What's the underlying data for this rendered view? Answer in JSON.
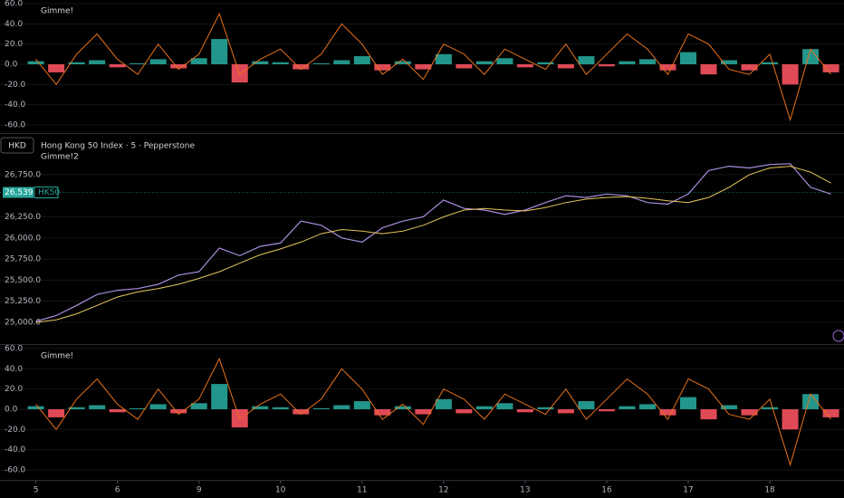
{
  "chart_data": [
    {
      "type": "bar",
      "title": "Gimme!",
      "x": [
        0,
        0.25,
        0.5,
        0.75,
        1,
        1.25,
        1.5,
        1.75,
        2,
        2.25,
        2.5,
        2.75,
        3,
        3.25,
        3.5,
        3.75,
        4,
        4.25,
        4.5,
        4.75,
        5,
        5.25,
        5.5,
        5.75,
        6,
        6.25,
        6.5,
        6.75,
        7,
        7.25,
        7.5,
        7.75,
        8,
        8.25,
        8.5,
        8.75,
        9,
        9.25,
        9.5,
        9.75
      ],
      "series": [
        {
          "style": "histogram",
          "positive_color": "#26a69a",
          "negative_color": "#f7525f",
          "values": [
            3,
            -8,
            2,
            4,
            -3,
            1,
            5,
            -4,
            6,
            25,
            -18,
            3,
            2,
            -5,
            1,
            4,
            8,
            -6,
            3,
            -5,
            10,
            -4,
            3,
            6,
            -3,
            2,
            -4,
            8,
            -2,
            3,
            5,
            -6,
            12,
            -10,
            4,
            -6,
            2,
            -20,
            15,
            -8
          ]
        },
        {
          "style": "line",
          "color": "#e8721c",
          "values": [
            5,
            -20,
            10,
            30,
            5,
            -10,
            20,
            -5,
            10,
            50,
            -10,
            5,
            15,
            -5,
            10,
            40,
            20,
            -10,
            5,
            -15,
            20,
            10,
            -10,
            15,
            5,
            -5,
            20,
            -10,
            10,
            30,
            15,
            -10,
            30,
            20,
            -5,
            -10,
            10,
            -55,
            15,
            -10
          ]
        }
      ],
      "xlim": [
        -0.44,
        9.91
      ],
      "ylim": [
        -68.1,
        63.6
      ],
      "yticks": [
        {
          "value": 60,
          "label": "60.0"
        },
        {
          "value": 40,
          "label": "40.0"
        },
        {
          "value": 20,
          "label": "20.0"
        },
        {
          "value": 0,
          "label": "0.0"
        },
        {
          "value": -20,
          "label": "-20.0"
        },
        {
          "value": -40,
          "label": "-40.0"
        },
        {
          "value": -60,
          "label": "-60.0"
        }
      ]
    },
    {
      "type": "line",
      "title": "Hong Kong 50 Index · 5 · Pepperstone",
      "subtitle": "Gimme!2",
      "currency": "HKD",
      "symbol": "HK50",
      "last_price": {
        "value": 26539.4,
        "label": "26,539.4"
      },
      "x": [
        0,
        0.25,
        0.5,
        0.75,
        1,
        1.25,
        1.5,
        1.75,
        2,
        2.25,
        2.5,
        2.75,
        3,
        3.25,
        3.5,
        3.75,
        4,
        4.25,
        4.5,
        4.75,
        5,
        5.25,
        5.5,
        5.75,
        6,
        6.25,
        6.5,
        6.75,
        7,
        7.25,
        7.5,
        7.75,
        8,
        8.25,
        8.5,
        8.75,
        9,
        9.25,
        9.5,
        9.75
      ],
      "series": [
        {
          "color": "#a98ee0",
          "values": [
            25010,
            25080,
            25200,
            25330,
            25380,
            25400,
            25450,
            25560,
            25600,
            25880,
            25790,
            25900,
            25940,
            26200,
            26150,
            26000,
            25950,
            26120,
            26200,
            26250,
            26450,
            26350,
            26330,
            26280,
            26330,
            26420,
            26500,
            26480,
            26520,
            26500,
            26420,
            26400,
            26520,
            26800,
            26850,
            26830,
            26870,
            26880,
            26600,
            26520
          ]
        },
        {
          "color": "#e6c65c",
          "values": [
            25000,
            25030,
            25100,
            25200,
            25300,
            25360,
            25400,
            25450,
            25520,
            25600,
            25700,
            25800,
            25870,
            25950,
            26050,
            26100,
            26080,
            26050,
            26080,
            26150,
            26250,
            26330,
            26350,
            26330,
            26320,
            26360,
            26420,
            26460,
            26480,
            26490,
            26470,
            26440,
            26420,
            26480,
            26600,
            26750,
            26830,
            26850,
            26780,
            26650
          ]
        }
      ],
      "xlim": [
        -0.44,
        9.91
      ],
      "ylim": [
        24742,
        27232
      ],
      "yticks": [
        {
          "value": 25000,
          "label": "25,000.0"
        },
        {
          "value": 25250,
          "label": "25,250.0"
        },
        {
          "value": 25500,
          "label": "25,500.0"
        },
        {
          "value": 25750,
          "label": "25,750.0"
        },
        {
          "value": 26000,
          "label": "26,000.0"
        },
        {
          "value": 26250,
          "label": "26,250.0"
        },
        {
          "value": 26750,
          "label": "26,750.0"
        }
      ]
    },
    {
      "type": "bar",
      "title": "Gimme!",
      "x": [
        0,
        0.25,
        0.5,
        0.75,
        1,
        1.25,
        1.5,
        1.75,
        2,
        2.25,
        2.5,
        2.75,
        3,
        3.25,
        3.5,
        3.75,
        4,
        4.25,
        4.5,
        4.75,
        5,
        5.25,
        5.5,
        5.75,
        6,
        6.25,
        6.5,
        6.75,
        7,
        7.25,
        7.5,
        7.75,
        8,
        8.25,
        8.5,
        8.75,
        9,
        9.25,
        9.5,
        9.75
      ],
      "series": [
        {
          "style": "histogram",
          "positive_color": "#26a69a",
          "negative_color": "#f7525f",
          "values": [
            3,
            -8,
            2,
            4,
            -3,
            1,
            5,
            -4,
            6,
            25,
            -18,
            3,
            2,
            -5,
            1,
            4,
            8,
            -6,
            3,
            -5,
            10,
            -4,
            3,
            6,
            -3,
            2,
            -4,
            8,
            -2,
            3,
            5,
            -6,
            12,
            -10,
            4,
            -6,
            2,
            -20,
            15,
            -8
          ]
        },
        {
          "style": "line",
          "color": "#e8721c",
          "values": [
            5,
            -20,
            10,
            30,
            5,
            -10,
            20,
            -5,
            10,
            50,
            -10,
            5,
            15,
            -5,
            10,
            40,
            20,
            -10,
            5,
            -15,
            20,
            10,
            -10,
            15,
            5,
            -5,
            20,
            -10,
            10,
            30,
            15,
            -10,
            30,
            20,
            -5,
            -10,
            10,
            -55,
            15,
            -10
          ]
        }
      ],
      "xlim": [
        -0.44,
        9.91
      ],
      "ylim": [
        -69.9,
        63.6
      ],
      "yticks": [
        {
          "value": 60,
          "label": "60.0"
        },
        {
          "value": 40,
          "label": "40.0"
        },
        {
          "value": 20,
          "label": "20.0"
        },
        {
          "value": 0,
          "label": "0.0"
        },
        {
          "value": -20,
          "label": "-20.0"
        },
        {
          "value": -40,
          "label": "-40.0"
        },
        {
          "value": -60,
          "label": "-60.0"
        }
      ],
      "xticks": [
        {
          "value": 0,
          "label": "5"
        },
        {
          "value": 1,
          "label": "6"
        },
        {
          "value": 2,
          "label": "9"
        },
        {
          "value": 3,
          "label": "10"
        },
        {
          "value": 4,
          "label": "11"
        },
        {
          "value": 5,
          "label": "12"
        },
        {
          "value": 6,
          "label": "13"
        },
        {
          "value": 7,
          "label": "16"
        },
        {
          "value": 8,
          "label": "17"
        },
        {
          "value": 9,
          "label": "18"
        }
      ]
    }
  ]
}
